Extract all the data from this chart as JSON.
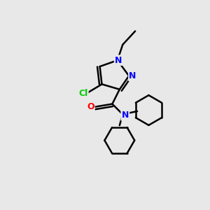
{
  "background_color": "#e8e8e8",
  "bond_color": "#000000",
  "atom_colors": {
    "N": "#0000ff",
    "O": "#ff0000",
    "Cl": "#00cc00",
    "C": "#000000"
  },
  "figure_size": [
    3.0,
    3.0
  ],
  "dpi": 100
}
